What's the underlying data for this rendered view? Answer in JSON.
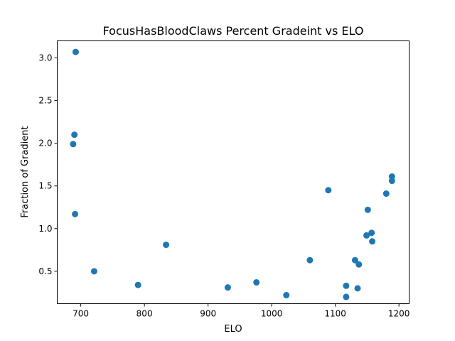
{
  "chart_data": {
    "type": "scatter",
    "title": "FocusHasBloodClaws Percent Gradeint vs ELO",
    "xlabel": "ELO",
    "ylabel": "Fraction of Gradient",
    "xlim": [
      663,
      1216
    ],
    "ylim": [
      0.12,
      3.2
    ],
    "xticks": [
      700,
      800,
      900,
      1000,
      1100,
      1200
    ],
    "xtick_labels": [
      "700",
      "800",
      "900",
      "1000",
      "1100",
      "1200"
    ],
    "yticks": [
      0.5,
      1.0,
      1.5,
      2.0,
      2.5,
      3.0
    ],
    "ytick_labels": [
      "0.5",
      "1.0",
      "1.5",
      "2.0",
      "2.5",
      "3.0"
    ],
    "grid": false,
    "marker_color": "#1f77b4",
    "series": [
      {
        "points": [
          {
            "x": 692,
            "y": 3.07
          },
          {
            "x": 690,
            "y": 2.1
          },
          {
            "x": 688,
            "y": 1.99
          },
          {
            "x": 691,
            "y": 1.17
          },
          {
            "x": 721,
            "y": 0.5
          },
          {
            "x": 790,
            "y": 0.34
          },
          {
            "x": 834,
            "y": 0.81
          },
          {
            "x": 931,
            "y": 0.31
          },
          {
            "x": 976,
            "y": 0.37
          },
          {
            "x": 1023,
            "y": 0.22
          },
          {
            "x": 1060,
            "y": 0.63
          },
          {
            "x": 1089,
            "y": 1.45
          },
          {
            "x": 1117,
            "y": 0.33
          },
          {
            "x": 1117,
            "y": 0.2
          },
          {
            "x": 1131,
            "y": 0.63
          },
          {
            "x": 1135,
            "y": 0.3
          },
          {
            "x": 1137,
            "y": 0.58
          },
          {
            "x": 1149,
            "y": 0.92
          },
          {
            "x": 1151,
            "y": 1.22
          },
          {
            "x": 1157,
            "y": 0.95
          },
          {
            "x": 1158,
            "y": 0.85
          },
          {
            "x": 1180,
            "y": 1.41
          },
          {
            "x": 1189,
            "y": 1.61
          },
          {
            "x": 1189,
            "y": 1.56
          }
        ]
      }
    ]
  }
}
